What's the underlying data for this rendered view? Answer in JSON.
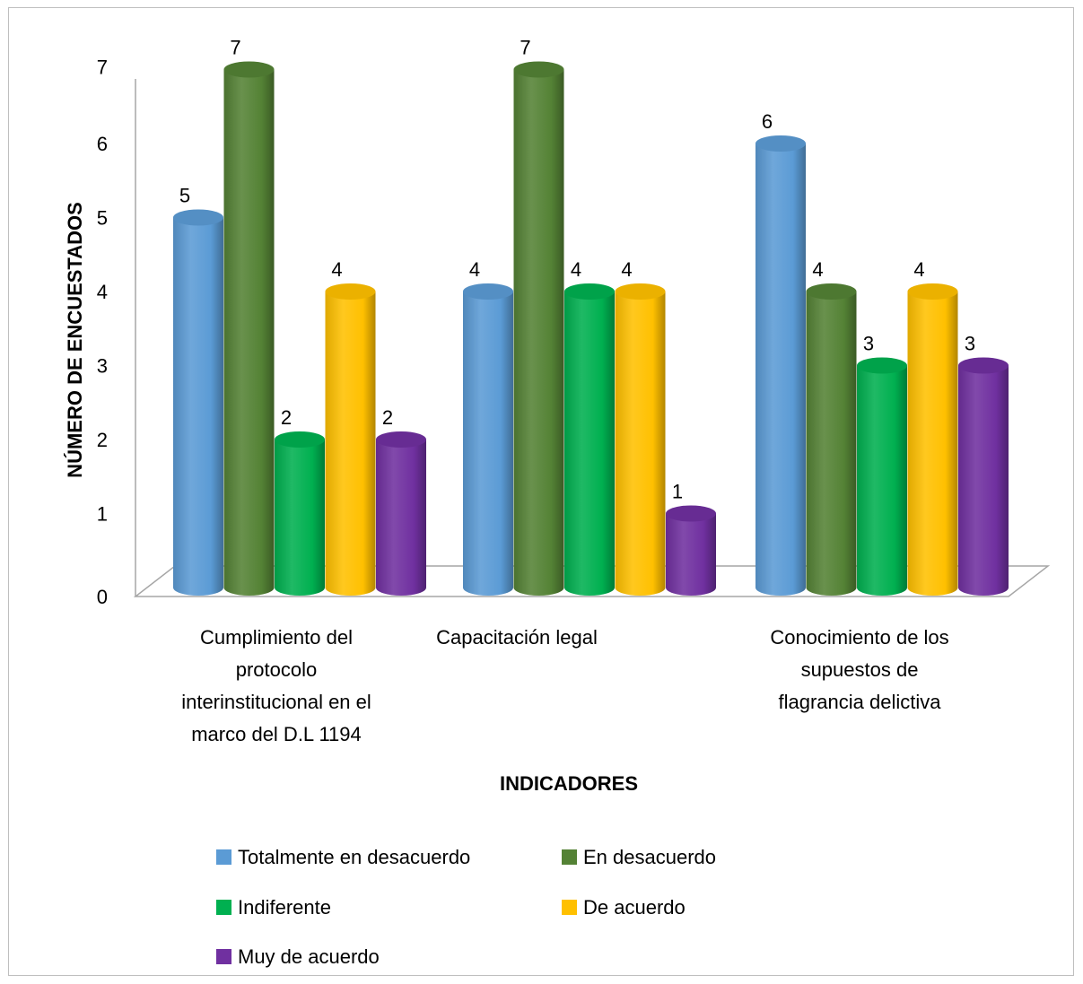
{
  "chart_data": {
    "type": "bar",
    "title": "",
    "xlabel": "INDICADORES",
    "ylabel": "NÚMERO DE ENCUESTADOS",
    "ylim": [
      0,
      7
    ],
    "yticks": [
      "0",
      "1",
      "2",
      "3",
      "4",
      "5",
      "6",
      "7"
    ],
    "grid": false,
    "legend_position": "bottom",
    "categories": [
      [
        "Cumplimiento del",
        "protocolo",
        "interinstitucional en el",
        "marco del D.L 1194"
      ],
      [
        "Capacitación legal"
      ],
      [
        "Conocimiento de los",
        "supuestos de",
        "flagrancia delictiva"
      ]
    ],
    "series": [
      {
        "name": "Totalmente en desacuerdo",
        "color": "#5b9bd5",
        "values": [
          5,
          4,
          6
        ]
      },
      {
        "name": "En desacuerdo",
        "color": "#548235",
        "values": [
          7,
          7,
          4
        ]
      },
      {
        "name": "Indiferente",
        "color": "#00b050",
        "values": [
          2,
          4,
          3
        ]
      },
      {
        "name": "De acuerdo",
        "color": "#ffc000",
        "values": [
          4,
          4,
          4
        ]
      },
      {
        "name": "Muy de acuerdo",
        "color": "#7030a0",
        "values": [
          2,
          1,
          3
        ]
      }
    ]
  }
}
